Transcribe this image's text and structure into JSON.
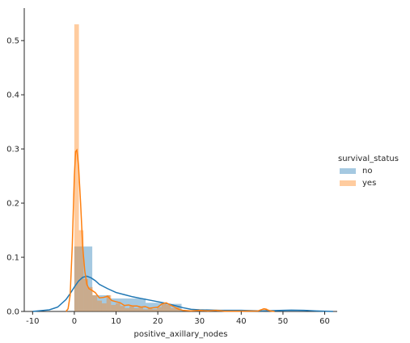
{
  "chart_data": {
    "type": "histogram+kde",
    "xlabel": "positive_axillary_nodes",
    "ylabel": "",
    "xlim": [
      -12,
      63
    ],
    "ylim": [
      0,
      0.56
    ],
    "xticks": [
      -10,
      0,
      10,
      20,
      30,
      40,
      50,
      60
    ],
    "yticks": [
      0.0,
      0.1,
      0.2,
      0.3,
      0.4,
      0.5
    ],
    "ytick_labels": [
      "0.0",
      "0.1",
      "0.2",
      "0.3",
      "0.4",
      "0.5"
    ],
    "grid": false,
    "legend": {
      "title": "survival_status",
      "placement": "right",
      "entries": [
        {
          "label": "no",
          "color": "#1f77b4"
        },
        {
          "label": "yes",
          "color": "#ff7f0e"
        }
      ]
    },
    "series": [
      {
        "name": "no",
        "color": "#1f77b4",
        "bins": [
          {
            "x0": 0,
            "x1": 4.3,
            "h": 0.12
          },
          {
            "x0": 4.3,
            "x1": 8.6,
            "h": 0.03
          },
          {
            "x0": 8.6,
            "x1": 12.8,
            "h": 0.024
          },
          {
            "x0": 12.8,
            "x1": 17.1,
            "h": 0.024
          },
          {
            "x0": 17.1,
            "x1": 21.4,
            "h": 0.016
          },
          {
            "x0": 21.4,
            "x1": 25.7,
            "h": 0.014
          },
          {
            "x0": 25.7,
            "x1": 30,
            "h": 0.002
          },
          {
            "x0": 30,
            "x1": 34.3,
            "h": 0.002
          },
          {
            "x0": 34.3,
            "x1": 38.5,
            "h": 0.001
          },
          {
            "x0": 38.5,
            "x1": 42.8,
            "h": 0.001
          },
          {
            "x0": 42.8,
            "x1": 47.1,
            "h": 0.0005
          },
          {
            "x0": 47.1,
            "x1": 51.4,
            "h": 0.001
          },
          {
            "x0": 51.4,
            "x1": 55.7,
            "h": 0.001
          }
        ],
        "kde": [
          [
            -10,
            0
          ],
          [
            -6,
            0.003
          ],
          [
            -4,
            0.008
          ],
          [
            -2,
            0.022
          ],
          [
            -1,
            0.033
          ],
          [
            0,
            0.045
          ],
          [
            1,
            0.056
          ],
          [
            2,
            0.063
          ],
          [
            3,
            0.065
          ],
          [
            4,
            0.062
          ],
          [
            5,
            0.057
          ],
          [
            6,
            0.05
          ],
          [
            8,
            0.042
          ],
          [
            10,
            0.035
          ],
          [
            12,
            0.031
          ],
          [
            14,
            0.027
          ],
          [
            16,
            0.024
          ],
          [
            18,
            0.021
          ],
          [
            20,
            0.018
          ],
          [
            22,
            0.015
          ],
          [
            24,
            0.011
          ],
          [
            26,
            0.007
          ],
          [
            28,
            0.004
          ],
          [
            30,
            0.003
          ],
          [
            35,
            0.002
          ],
          [
            40,
            0.002
          ],
          [
            45,
            0.001
          ],
          [
            50,
            0.002
          ],
          [
            52,
            0.0025
          ],
          [
            55,
            0.002
          ],
          [
            58,
            0.001
          ],
          [
            62,
            0
          ]
        ]
      },
      {
        "name": "yes",
        "color": "#ff7f0e",
        "bins": [
          {
            "x0": 0,
            "x1": 1.1,
            "h": 0.53
          },
          {
            "x0": 1.1,
            "x1": 2.2,
            "h": 0.15
          },
          {
            "x0": 2.2,
            "x1": 3.3,
            "h": 0.06
          },
          {
            "x0": 3.3,
            "x1": 4.4,
            "h": 0.045
          },
          {
            "x0": 4.4,
            "x1": 5.5,
            "h": 0.03
          },
          {
            "x0": 5.5,
            "x1": 6.6,
            "h": 0.02
          },
          {
            "x0": 6.6,
            "x1": 7.7,
            "h": 0.015
          },
          {
            "x0": 7.7,
            "x1": 8.8,
            "h": 0.03
          },
          {
            "x0": 8.8,
            "x1": 9.9,
            "h": 0.012
          },
          {
            "x0": 9.9,
            "x1": 11,
            "h": 0.015
          },
          {
            "x0": 11,
            "x1": 12.1,
            "h": 0.01
          },
          {
            "x0": 12.1,
            "x1": 13.2,
            "h": 0.006
          },
          {
            "x0": 13.2,
            "x1": 14.3,
            "h": 0.01
          },
          {
            "x0": 14.3,
            "x1": 15.4,
            "h": 0.006
          },
          {
            "x0": 15.4,
            "x1": 16.5,
            "h": 0.008
          },
          {
            "x0": 16.5,
            "x1": 17.6,
            "h": 0.004
          },
          {
            "x0": 17.6,
            "x1": 18.7,
            "h": 0.006
          },
          {
            "x0": 18.7,
            "x1": 19.8,
            "h": 0.004
          },
          {
            "x0": 19.8,
            "x1": 20.9,
            "h": 0.008
          },
          {
            "x0": 20.9,
            "x1": 22,
            "h": 0.014
          },
          {
            "x0": 22,
            "x1": 23.1,
            "h": 0.012
          },
          {
            "x0": 23.1,
            "x1": 24.2,
            "h": 0.006
          },
          {
            "x0": 24.2,
            "x1": 25.3,
            "h": 0.008
          },
          {
            "x0": 29.7,
            "x1": 30.8,
            "h": 0.003
          },
          {
            "x0": 34.1,
            "x1": 35.2,
            "h": 0.003
          },
          {
            "x0": 45.1,
            "x1": 46.2,
            "h": 0.006
          }
        ],
        "kde": [
          [
            -2,
            0
          ],
          [
            -1.5,
            0.005
          ],
          [
            -1,
            0.03
          ],
          [
            -0.5,
            0.12
          ],
          [
            0,
            0.25
          ],
          [
            0.3,
            0.295
          ],
          [
            0.6,
            0.298
          ],
          [
            1,
            0.27
          ],
          [
            1.5,
            0.2
          ],
          [
            2,
            0.12
          ],
          [
            2.5,
            0.075
          ],
          [
            3,
            0.05
          ],
          [
            3.5,
            0.042
          ],
          [
            4,
            0.04
          ],
          [
            5,
            0.035
          ],
          [
            6,
            0.025
          ],
          [
            7,
            0.026
          ],
          [
            8,
            0.028
          ],
          [
            9,
            0.02
          ],
          [
            10,
            0.018
          ],
          [
            11,
            0.016
          ],
          [
            12,
            0.011
          ],
          [
            13,
            0.012
          ],
          [
            14,
            0.01
          ],
          [
            15,
            0.01
          ],
          [
            16,
            0.008
          ],
          [
            17,
            0.009
          ],
          [
            18,
            0.006
          ],
          [
            19,
            0.007
          ],
          [
            20,
            0.008
          ],
          [
            21,
            0.014
          ],
          [
            22,
            0.016
          ],
          [
            23,
            0.012
          ],
          [
            24,
            0.008
          ],
          [
            25,
            0.004
          ],
          [
            26,
            0.002
          ],
          [
            28,
            0.001
          ],
          [
            30,
            0.002
          ],
          [
            32,
            0.001
          ],
          [
            34,
            0.002
          ],
          [
            36,
            0.0005
          ],
          [
            40,
            0.0005
          ],
          [
            44,
            0.001
          ],
          [
            45.5,
            0.005
          ],
          [
            47,
            0.001
          ],
          [
            48,
            0
          ]
        ]
      }
    ]
  }
}
